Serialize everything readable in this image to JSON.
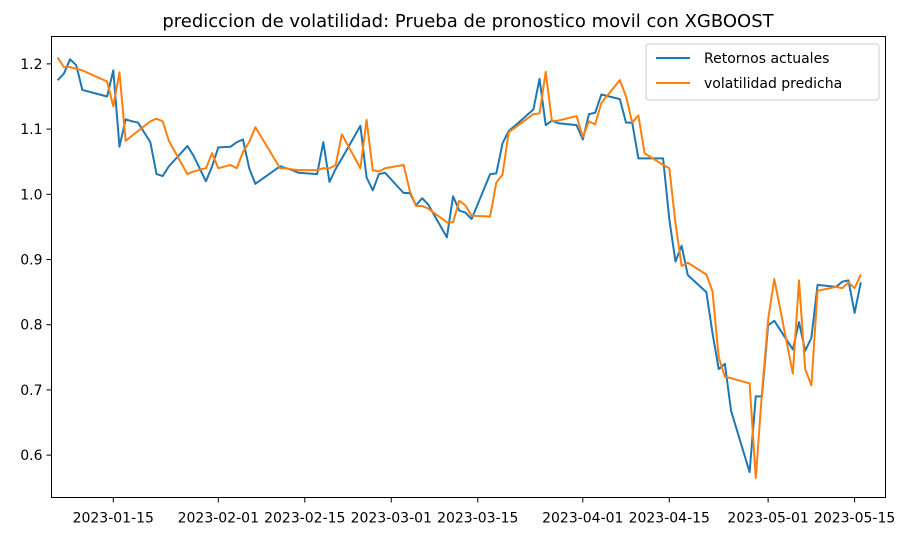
{
  "chart_data": {
    "type": "line",
    "title": "prediccion de volatilidad: Prueba de pronostico movil con XGBOOST",
    "xlabel": "",
    "ylabel": "",
    "xlim": [
      "2023-01-05",
      "2023-05-20"
    ],
    "ylim": [
      0.535,
      1.242
    ],
    "grid": false,
    "legend_position": "top-right",
    "x_ticks": [
      "2023-01-15",
      "2023-02-01",
      "2023-02-15",
      "2023-03-01",
      "2023-03-15",
      "2023-04-01",
      "2023-04-15",
      "2023-05-01",
      "2023-05-15"
    ],
    "x_tick_labels": [
      "2023-01-15",
      "2023-02-01",
      "2023-02-15",
      "2023-03-01",
      "2023-03-15",
      "2023-04-01",
      "2023-04-15",
      "2023-05-01",
      "2023-05-15"
    ],
    "y_ticks": [
      0.6,
      0.7,
      0.8,
      0.9,
      1.0,
      1.1,
      1.2
    ],
    "y_tick_labels": [
      "0.6",
      "0.7",
      "0.8",
      "0.9",
      "1.0",
      "1.1",
      "1.2"
    ],
    "series": [
      {
        "name": "Retornos actuales",
        "color": "#1f77b4",
        "x": [
          "2023-01-06",
          "2023-01-07",
          "2023-01-08",
          "2023-01-09",
          "2023-01-10",
          "2023-01-14",
          "2023-01-15",
          "2023-01-16",
          "2023-01-17",
          "2023-01-18",
          "2023-01-19",
          "2023-01-21",
          "2023-01-22",
          "2023-01-23",
          "2023-01-24",
          "2023-01-27",
          "2023-01-28",
          "2023-01-30",
          "2023-01-31",
          "2023-02-01",
          "2023-02-03",
          "2023-02-04",
          "2023-02-05",
          "2023-02-06",
          "2023-02-07",
          "2023-02-11",
          "2023-02-12",
          "2023-02-13",
          "2023-02-14",
          "2023-02-17",
          "2023-02-18",
          "2023-02-19",
          "2023-02-20",
          "2023-02-21",
          "2023-02-24",
          "2023-02-25",
          "2023-02-26",
          "2023-02-27",
          "2023-02-28",
          "2023-03-03",
          "2023-03-04",
          "2023-03-05",
          "2023-03-06",
          "2023-03-07",
          "2023-03-10",
          "2023-03-11",
          "2023-03-12",
          "2023-03-13",
          "2023-03-14",
          "2023-03-17",
          "2023-03-18",
          "2023-03-19",
          "2023-03-20",
          "2023-03-21",
          "2023-03-24",
          "2023-03-25",
          "2023-03-26",
          "2023-03-27",
          "2023-03-28",
          "2023-03-31",
          "2023-04-01",
          "2023-04-02",
          "2023-04-03",
          "2023-04-04",
          "2023-04-07",
          "2023-04-08",
          "2023-04-09",
          "2023-04-10",
          "2023-04-11",
          "2023-04-14",
          "2023-04-15",
          "2023-04-16",
          "2023-04-17",
          "2023-04-18",
          "2023-04-21",
          "2023-04-22",
          "2023-04-23",
          "2023-04-24",
          "2023-04-25",
          "2023-04-28",
          "2023-04-29",
          "2023-04-30",
          "2023-05-01",
          "2023-05-02",
          "2023-05-05",
          "2023-05-06",
          "2023-05-07",
          "2023-05-08",
          "2023-05-09",
          "2023-05-12",
          "2023-05-13",
          "2023-05-14",
          "2023-05-15",
          "2023-05-16"
        ],
        "y": [
          1.175,
          1.185,
          1.207,
          1.198,
          1.16,
          1.15,
          1.19,
          1.073,
          1.115,
          1.112,
          1.11,
          1.08,
          1.031,
          1.028,
          1.043,
          1.074,
          1.059,
          1.02,
          1.043,
          1.072,
          1.073,
          1.08,
          1.084,
          1.04,
          1.016,
          1.043,
          1.04,
          1.037,
          1.033,
          1.031,
          1.08,
          1.019,
          1.039,
          1.055,
          1.105,
          1.026,
          1.006,
          1.031,
          1.033,
          1.002,
          1.002,
          0.983,
          0.994,
          0.984,
          0.934,
          0.997,
          0.975,
          0.972,
          0.962,
          1.031,
          1.032,
          1.078,
          1.097,
          1.105,
          1.13,
          1.177,
          1.106,
          1.113,
          1.109,
          1.106,
          1.084,
          1.123,
          1.125,
          1.153,
          1.146,
          1.11,
          1.11,
          1.055,
          1.055,
          1.055,
          0.962,
          0.897,
          0.921,
          0.876,
          0.85,
          0.787,
          0.732,
          0.74,
          0.668,
          0.574,
          0.69,
          0.69,
          0.799,
          0.806,
          0.762,
          0.804,
          0.76,
          0.78,
          0.861,
          0.858,
          0.866,
          0.868,
          0.818,
          0.865
        ]
      },
      {
        "name": "volatilidad predicha",
        "color": "#ff7f0e",
        "x": [
          "2023-01-06",
          "2023-01-07",
          "2023-01-08",
          "2023-01-10",
          "2023-01-14",
          "2023-01-15",
          "2023-01-16",
          "2023-01-17",
          "2023-01-21",
          "2023-01-22",
          "2023-01-23",
          "2023-01-24",
          "2023-01-27",
          "2023-01-28",
          "2023-01-30",
          "2023-01-31",
          "2023-02-01",
          "2023-02-03",
          "2023-02-04",
          "2023-02-05",
          "2023-02-06",
          "2023-02-07",
          "2023-02-11",
          "2023-02-12",
          "2023-02-13",
          "2023-02-14",
          "2023-02-17",
          "2023-02-18",
          "2023-02-19",
          "2023-02-20",
          "2023-02-21",
          "2023-02-24",
          "2023-02-25",
          "2023-02-26",
          "2023-02-27",
          "2023-02-28",
          "2023-03-03",
          "2023-03-04",
          "2023-03-05",
          "2023-03-06",
          "2023-03-07",
          "2023-03-10",
          "2023-03-11",
          "2023-03-12",
          "2023-03-13",
          "2023-03-14",
          "2023-03-17",
          "2023-03-18",
          "2023-03-19",
          "2023-03-20",
          "2023-03-24",
          "2023-03-25",
          "2023-03-26",
          "2023-03-27",
          "2023-03-28",
          "2023-03-31",
          "2023-04-01",
          "2023-04-02",
          "2023-04-03",
          "2023-04-04",
          "2023-04-07",
          "2023-04-08",
          "2023-04-09",
          "2023-04-10",
          "2023-04-11",
          "2023-04-14",
          "2023-04-15",
          "2023-04-16",
          "2023-04-17",
          "2023-04-18",
          "2023-04-21",
          "2023-04-22",
          "2023-04-23",
          "2023-04-24",
          "2023-04-25",
          "2023-04-28",
          "2023-04-29",
          "2023-04-30",
          "2023-05-01",
          "2023-05-02",
          "2023-05-05",
          "2023-05-06",
          "2023-05-07",
          "2023-05-08",
          "2023-05-09",
          "2023-05-12",
          "2023-05-13",
          "2023-05-14",
          "2023-05-15",
          "2023-05-16"
        ],
        "y": [
          1.21,
          1.195,
          1.195,
          1.19,
          1.173,
          1.135,
          1.187,
          1.082,
          1.112,
          1.116,
          1.112,
          1.082,
          1.031,
          1.035,
          1.04,
          1.063,
          1.04,
          1.045,
          1.04,
          1.065,
          1.08,
          1.103,
          1.04,
          1.04,
          1.038,
          1.037,
          1.037,
          1.04,
          1.04,
          1.045,
          1.092,
          1.04,
          1.114,
          1.037,
          1.035,
          1.04,
          1.045,
          1.005,
          0.982,
          0.982,
          0.978,
          0.957,
          0.957,
          0.99,
          0.983,
          0.967,
          0.966,
          1.018,
          1.03,
          1.095,
          1.123,
          1.124,
          1.188,
          1.112,
          1.113,
          1.12,
          1.088,
          1.112,
          1.107,
          1.14,
          1.175,
          1.15,
          1.11,
          1.121,
          1.063,
          1.045,
          1.04,
          0.956,
          0.89,
          0.895,
          0.877,
          0.851,
          0.75,
          0.72,
          0.718,
          0.71,
          0.565,
          0.695,
          0.808,
          0.87,
          0.725,
          0.868,
          0.732,
          0.707,
          0.852,
          0.858,
          0.856,
          0.865,
          0.856,
          0.877
        ]
      }
    ]
  }
}
